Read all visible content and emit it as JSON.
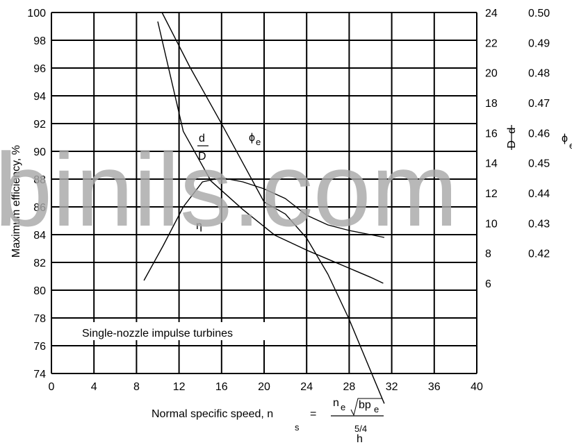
{
  "chart_data": {
    "type": "line",
    "xlabel_prefix": "Normal specific speed, n",
    "xlabel_sub": "s",
    "xlabel_equals": "=",
    "xlabel_num": "n",
    "xlabel_num_sub": "e",
    "xlabel_root": "bp",
    "xlabel_root_sub": "e",
    "xlabel_den": "h",
    "xlabel_den_exp": "5/4",
    "ylabel": "Maximum efficiency, %",
    "xlim": [
      0,
      40
    ],
    "ylim": [
      74,
      100
    ],
    "y2lim": [
      0,
      24
    ],
    "y3lim": [
      0.38,
      0.5
    ],
    "x_ticks": [
      "0",
      "4",
      "8",
      "12",
      "16",
      "20",
      "24",
      "28",
      "32",
      "36",
      "40"
    ],
    "y_ticks": [
      "74",
      "76",
      "78",
      "80",
      "82",
      "84",
      "86",
      "88",
      "90",
      "92",
      "94",
      "96",
      "98",
      "100"
    ],
    "y2_ticks": [
      "6",
      "8",
      "10",
      "12",
      "14",
      "16",
      "18",
      "20",
      "22",
      "24"
    ],
    "y3_ticks": [
      "0.42",
      "0.43",
      "0.44",
      "0.45",
      "0.46",
      "0.47",
      "0.48",
      "0.49",
      "0.50"
    ],
    "y2_label_num": "d",
    "y2_label_den": "D",
    "y3_label": "ϕ",
    "grid": true,
    "annotation": "Single-nozzle impulse turbines",
    "series": [
      {
        "label_main": "η",
        "axis": "left",
        "x": [
          8.7,
          10.5,
          12.4,
          14.2,
          16.0,
          18.0,
          20.0,
          22.0,
          24.0,
          26.0,
          28.0,
          30.0,
          31.3
        ],
        "y": [
          80.7,
          83.2,
          86.0,
          87.8,
          88.1,
          87.8,
          87.3,
          86.6,
          85.4,
          84.7,
          84.3,
          84.0,
          83.8
        ]
      },
      {
        "label_main": "d",
        "label_den": "D",
        "axis": "d/D",
        "x": [
          10.0,
          12.4,
          15.0,
          18.0,
          21.0,
          24.0,
          27.0,
          30.0,
          31.2
        ],
        "y": [
          23.4,
          16.1,
          12.8,
          10.9,
          9.2,
          8.2,
          7.3,
          6.4,
          6.0
        ]
      },
      {
        "label_main": "ϕ",
        "label_sub": "e",
        "axis": "phi",
        "x": [
          10.4,
          13.0,
          16.0,
          18.0,
          20.0,
          22.0,
          24.0,
          26.0,
          28.0,
          30.0,
          31.3
        ],
        "y": [
          0.5,
          0.482,
          0.463,
          0.45,
          0.437,
          0.433,
          0.425,
          0.413,
          0.398,
          0.381,
          0.37
        ]
      }
    ]
  },
  "watermark": "binils.com"
}
